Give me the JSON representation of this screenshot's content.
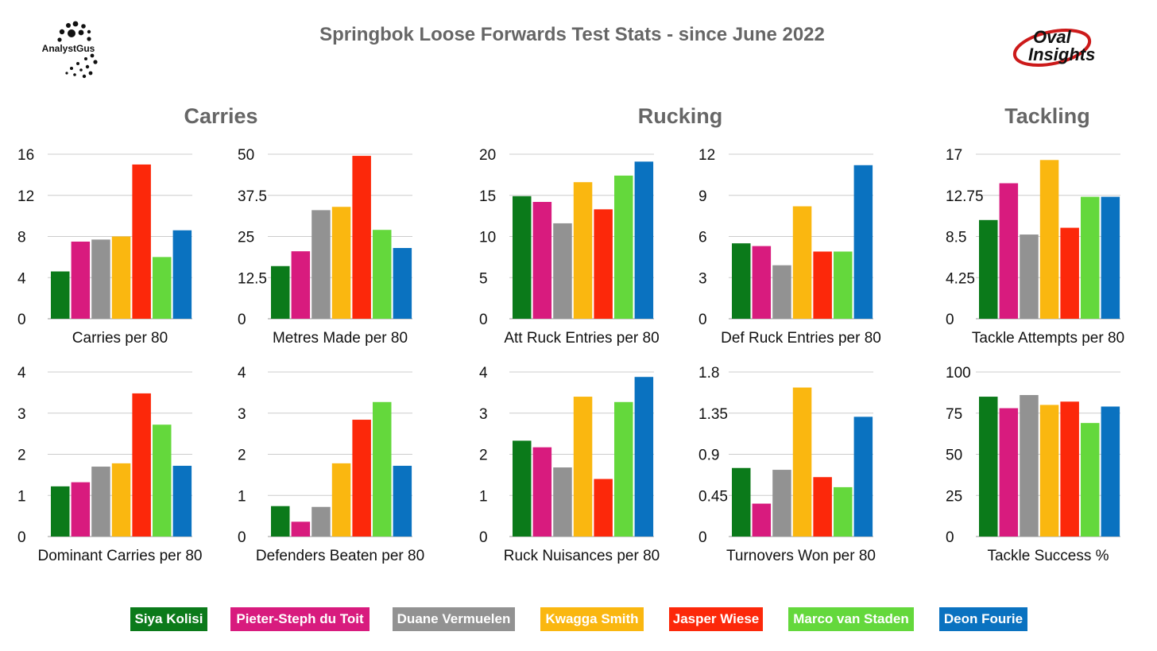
{
  "title": "Springbok Loose Forwards Test Stats - since June 2022",
  "sections": [
    "Carries",
    "Rucking",
    "Tackling"
  ],
  "logos": {
    "left": "AnalystGus",
    "right_line1": "Oval",
    "right_line2": "Insights"
  },
  "players": [
    {
      "name": "Siya Kolisi",
      "color": "#0b7a1a"
    },
    {
      "name": "Pieter-Steph du Toit",
      "color": "#d81b7e"
    },
    {
      "name": "Duane Vermuelen",
      "color": "#929292"
    },
    {
      "name": "Kwagga Smith",
      "color": "#fab710"
    },
    {
      "name": "Jasper Wiese",
      "color": "#fc280a"
    },
    {
      "name": "Marco van Staden",
      "color": "#64d83c"
    },
    {
      "name": "Deon Fourie",
      "color": "#0a72c0"
    }
  ],
  "chart_data": [
    {
      "type": "bar",
      "xlabel": "Carries per 80",
      "ylim": [
        0,
        16
      ],
      "yticks": [
        "0",
        "4",
        "8",
        "12",
        "16"
      ],
      "values": [
        4.6,
        7.5,
        7.7,
        8.0,
        15.0,
        6.0,
        8.6
      ]
    },
    {
      "type": "bar",
      "xlabel": "Metres Made per 80",
      "ylim": [
        0,
        50
      ],
      "yticks": [
        "0",
        "12.5",
        "25",
        "37.5",
        "50"
      ],
      "values": [
        16,
        20.5,
        33,
        34,
        49.5,
        27,
        21.5
      ]
    },
    {
      "type": "bar",
      "xlabel": "Att Ruck Entries per 80",
      "ylim": [
        0,
        20
      ],
      "yticks": [
        "0",
        "5",
        "10",
        "15",
        "20"
      ],
      "values": [
        14.9,
        14.2,
        11.6,
        16.6,
        13.3,
        17.4,
        19.1
      ]
    },
    {
      "type": "bar",
      "xlabel": "Def Ruck Entries per 80",
      "ylim": [
        0,
        12
      ],
      "yticks": [
        "0",
        "3",
        "6",
        "9",
        "12"
      ],
      "values": [
        5.5,
        5.3,
        3.9,
        8.2,
        4.9,
        4.9,
        11.2
      ]
    },
    {
      "type": "bar",
      "xlabel": "Tackle Attempts per 80",
      "ylim": [
        0,
        17
      ],
      "yticks": [
        "0",
        "4.25",
        "8.5",
        "12.75",
        "17"
      ],
      "values": [
        10.2,
        14.0,
        8.7,
        16.4,
        9.4,
        12.6,
        12.6
      ]
    },
    {
      "type": "bar",
      "xlabel": "Dominant Carries per 80",
      "ylim": [
        0,
        4
      ],
      "yticks": [
        "0",
        "1",
        "2",
        "3",
        "4"
      ],
      "values": [
        1.22,
        1.32,
        1.7,
        1.78,
        3.48,
        2.72,
        1.72
      ]
    },
    {
      "type": "bar",
      "xlabel": "Defenders Beaten per 80",
      "ylim": [
        0,
        4
      ],
      "yticks": [
        "0",
        "1",
        "2",
        "3",
        "4"
      ],
      "values": [
        0.74,
        0.36,
        0.72,
        1.78,
        2.84,
        3.27,
        1.72
      ]
    },
    {
      "type": "bar",
      "xlabel": "Ruck Nuisances per 80",
      "ylim": [
        0,
        4
      ],
      "yticks": [
        "0",
        "1",
        "2",
        "3",
        "4"
      ],
      "values": [
        2.33,
        2.17,
        1.68,
        3.4,
        1.4,
        3.27,
        3.88
      ]
    },
    {
      "type": "bar",
      "xlabel": "Turnovers Won per 80",
      "ylim": [
        0,
        1.8
      ],
      "yticks": [
        "0",
        "0.45",
        "0.9",
        "1.35",
        "1.8"
      ],
      "values": [
        0.75,
        0.36,
        0.73,
        1.63,
        0.65,
        0.54,
        1.31
      ]
    },
    {
      "type": "bar",
      "xlabel": "Tackle Success %",
      "ylim": [
        0,
        100
      ],
      "yticks": [
        "0",
        "25",
        "50",
        "75",
        "100"
      ],
      "values": [
        85,
        78,
        86,
        80,
        82,
        69,
        79
      ]
    }
  ]
}
